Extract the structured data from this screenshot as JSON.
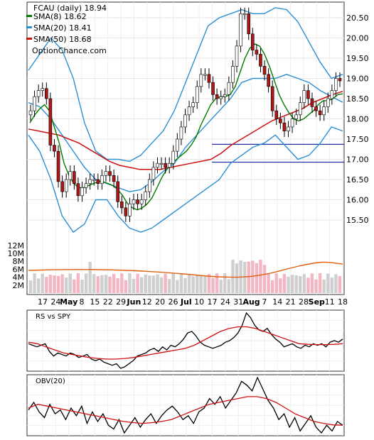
{
  "chart_data": [
    {
      "type": "candlestick",
      "title": "FCAU (daily) 18.94",
      "legend": [
        {
          "label": "SMA(8) 18.62",
          "color": "#007a00"
        },
        {
          "label": "SMA(20) 18.41",
          "color": "#2b8fd6"
        },
        {
          "label": "SMA(50) 18.68",
          "color": "#cc1111"
        }
      ],
      "watermark": "OptionChance.com",
      "ylim": [
        14.9,
        20.85
      ],
      "y_ticks": [
        "20.50",
        "20.00",
        "19.50",
        "19.00",
        "18.50",
        "18.00",
        "17.50",
        "17.00",
        "16.50",
        "16.00",
        "15.50"
      ],
      "horizontal_lines": [
        17.37,
        16.93
      ],
      "x_labels": [
        "17",
        "24",
        "May",
        "8",
        "15",
        "22",
        "29",
        "Jun",
        "12",
        "20",
        "26",
        "Jul",
        "10",
        "17",
        "24",
        "31",
        "Aug",
        "7",
        "14",
        "21",
        "28",
        "Sep",
        "11",
        "18"
      ],
      "close": [
        18.2,
        18.55,
        18.7,
        18.75,
        18.5,
        17.35,
        17.2,
        16.45,
        16.2,
        16.5,
        16.7,
        16.4,
        16.1,
        16.3,
        16.4,
        16.5,
        16.5,
        16.4,
        16.6,
        16.7,
        16.6,
        16.45,
        15.95,
        15.8,
        15.6,
        15.9,
        16.0,
        15.9,
        16.0,
        16.2,
        16.5,
        16.8,
        16.9,
        16.9,
        16.8,
        16.9,
        17.2,
        17.5,
        17.8,
        18.1,
        18.3,
        18.4,
        18.8,
        19.1,
        19.1,
        18.9,
        18.6,
        18.5,
        18.55,
        18.6,
        18.9,
        19.3,
        19.8,
        20.6,
        20.6,
        20.1,
        19.7,
        19.6,
        19.3,
        19.1,
        18.8,
        18.2,
        18.0,
        17.9,
        17.7,
        17.8,
        18.0,
        18.1,
        18.4,
        18.7,
        18.5,
        18.3,
        18.2,
        18.1,
        18.3,
        18.5,
        18.7,
        19.0,
        18.94
      ],
      "sma8": [
        17.9,
        18.1,
        18.25,
        18.35,
        18.2,
        17.8,
        17.4,
        16.9,
        16.6,
        16.4,
        16.3,
        16.3,
        16.35,
        16.4,
        16.45,
        16.45,
        16.4,
        16.35,
        16.25,
        16.1,
        15.9,
        15.8,
        15.75,
        15.8,
        15.9,
        16.05,
        16.3,
        16.55,
        16.75,
        16.9,
        17.0,
        17.1,
        17.2,
        17.35,
        17.55,
        17.85,
        18.1,
        18.35,
        18.5,
        18.55,
        18.55,
        18.6,
        18.8,
        19.15,
        19.5,
        19.75,
        19.85,
        19.8,
        19.6,
        19.3,
        18.95,
        18.6,
        18.35,
        18.15,
        18.0,
        17.95,
        18.0,
        18.1,
        18.2,
        18.35,
        18.45,
        18.45,
        18.5,
        18.6,
        18.62
      ],
      "sma20": [
        {
          "u": 19.2,
          "m": 18.4,
          "l": 17.6
        },
        {
          "u": 19.6,
          "m": 18.3,
          "l": 17.2
        },
        {
          "u": 20.0,
          "m": 18.0,
          "l": 16.5
        },
        {
          "u": 19.7,
          "m": 17.6,
          "l": 15.6
        },
        {
          "u": 19.0,
          "m": 17.2,
          "l": 15.2
        },
        {
          "u": 17.9,
          "m": 16.8,
          "l": 15.4
        },
        {
          "u": 17.2,
          "m": 16.5,
          "l": 16.0
        },
        {
          "u": 17.0,
          "m": 16.4,
          "l": 16.0
        },
        {
          "u": 17.0,
          "m": 16.3,
          "l": 15.6
        },
        {
          "u": 16.95,
          "m": 16.2,
          "l": 15.3
        },
        {
          "u": 17.1,
          "m": 16.25,
          "l": 15.2
        },
        {
          "u": 17.4,
          "m": 16.45,
          "l": 15.3
        },
        {
          "u": 17.7,
          "m": 16.7,
          "l": 15.5
        },
        {
          "u": 18.2,
          "m": 16.9,
          "l": 15.7
        },
        {
          "u": 18.9,
          "m": 17.3,
          "l": 15.9
        },
        {
          "u": 19.6,
          "m": 17.6,
          "l": 16.1
        },
        {
          "u": 20.3,
          "m": 17.9,
          "l": 16.3
        },
        {
          "u": 20.5,
          "m": 18.2,
          "l": 16.5
        },
        {
          "u": 20.6,
          "m": 18.5,
          "l": 16.9
        },
        {
          "u": 20.7,
          "m": 18.9,
          "l": 17.1
        },
        {
          "u": 20.6,
          "m": 19.0,
          "l": 17.3
        },
        {
          "u": 20.6,
          "m": 19.0,
          "l": 17.4
        },
        {
          "u": 20.75,
          "m": 19.0,
          "l": 17.6
        },
        {
          "u": 20.7,
          "m": 19.1,
          "l": 17.3
        },
        {
          "u": 20.4,
          "m": 19.0,
          "l": 17.0
        },
        {
          "u": 19.9,
          "m": 18.9,
          "l": 17.1
        },
        {
          "u": 19.4,
          "m": 18.7,
          "l": 17.4
        },
        {
          "u": 19.0,
          "m": 18.55,
          "l": 17.8
        },
        {
          "u": 19.1,
          "m": 18.41,
          "l": 17.7
        }
      ],
      "sma50": [
        17.75,
        17.7,
        17.65,
        17.6,
        17.5,
        17.4,
        17.25,
        17.1,
        16.95,
        16.85,
        16.8,
        16.75,
        16.75,
        16.75,
        16.8,
        16.85,
        16.9,
        16.95,
        17.0,
        17.15,
        17.35,
        17.5,
        17.65,
        17.8,
        17.95,
        18.05,
        18.15,
        18.25,
        18.4,
        18.5,
        18.6,
        18.68
      ],
      "volume_ylabels": [
        "12M",
        "10M",
        "8M",
        "6M",
        "4M",
        "2M"
      ]
    },
    {
      "type": "line",
      "title": "RS vs SPY",
      "series": [
        {
          "values": [
            0.6,
            0.55,
            0.5,
            0.55,
            0.6,
            0.35,
            0.2,
            0.3,
            0.25,
            0.2,
            0.3,
            0.25,
            0.15,
            0.2,
            0.25,
            0.1,
            0.05,
            0.1,
            0.0,
            -0.05,
            -0.1,
            -0.05,
            -0.2,
            -0.15,
            -0.05,
            0.05,
            0.2,
            0.25,
            0.3,
            0.4,
            0.45,
            0.35,
            0.5,
            0.4,
            0.55,
            0.5,
            0.6,
            0.75,
            0.95,
            1.0,
            0.85,
            0.65,
            0.55,
            0.5,
            0.45,
            0.5,
            0.55,
            0.65,
            0.7,
            0.8,
            0.95,
            1.2,
            1.6,
            1.45,
            1.2,
            1.05,
            1.0,
            1.1,
            0.9,
            0.75,
            0.65,
            0.5,
            0.55,
            0.6,
            0.5,
            0.45,
            0.55,
            0.5,
            0.6,
            0.55,
            0.6,
            0.5,
            0.65,
            0.7,
            0.65,
            0.75
          ]
        },
        {
          "values": [
            0.65,
            0.6,
            0.5,
            0.4,
            0.3,
            0.25,
            0.2,
            0.15,
            0.12,
            0.1,
            0.1,
            0.12,
            0.15,
            0.2,
            0.25,
            0.3,
            0.35,
            0.4,
            0.45,
            0.55,
            0.7,
            0.85,
            1.0,
            1.1,
            1.15,
            1.15,
            1.1,
            1.0,
            0.9,
            0.8,
            0.7,
            0.6,
            0.58,
            0.57,
            0.57,
            0.58,
            0.6
          ]
        }
      ]
    },
    {
      "type": "line",
      "title": "OBV(20)",
      "series": [
        {
          "values": [
            0.45,
            0.65,
            0.4,
            0.25,
            0.6,
            0.35,
            0.45,
            0.2,
            0.5,
            0.3,
            0.55,
            0.1,
            0.4,
            0.15,
            0.35,
            0.05,
            -0.05,
            0.2,
            -0.15,
            0.05,
            0.25,
            0.0,
            0.2,
            0.35,
            0.1,
            0.3,
            0.45,
            0.55,
            0.4,
            0.2,
            0.3,
            0.1,
            0.4,
            0.5,
            0.75,
            0.6,
            0.8,
            0.5,
            0.7,
            0.9,
            1.2,
            1.1,
            0.95,
            1.3,
            1.0,
            0.7,
            0.5,
            0.2,
            0.35,
            0.0,
            0.25,
            -0.1,
            0.1,
            0.3,
            0.0,
            -0.15,
            0.05,
            -0.1,
            0.15,
            0.05
          ]
        },
        {
          "values": [
            0.5,
            0.6,
            0.55,
            0.5,
            0.45,
            0.4,
            0.35,
            0.3,
            0.25,
            0.2,
            0.15,
            0.12,
            0.1,
            0.12,
            0.15,
            0.2,
            0.3,
            0.4,
            0.5,
            0.6,
            0.65,
            0.7,
            0.75,
            0.8,
            0.8,
            0.75,
            0.65,
            0.5,
            0.35,
            0.25,
            0.15,
            0.1,
            0.06,
            0.05
          ]
        }
      ]
    }
  ]
}
